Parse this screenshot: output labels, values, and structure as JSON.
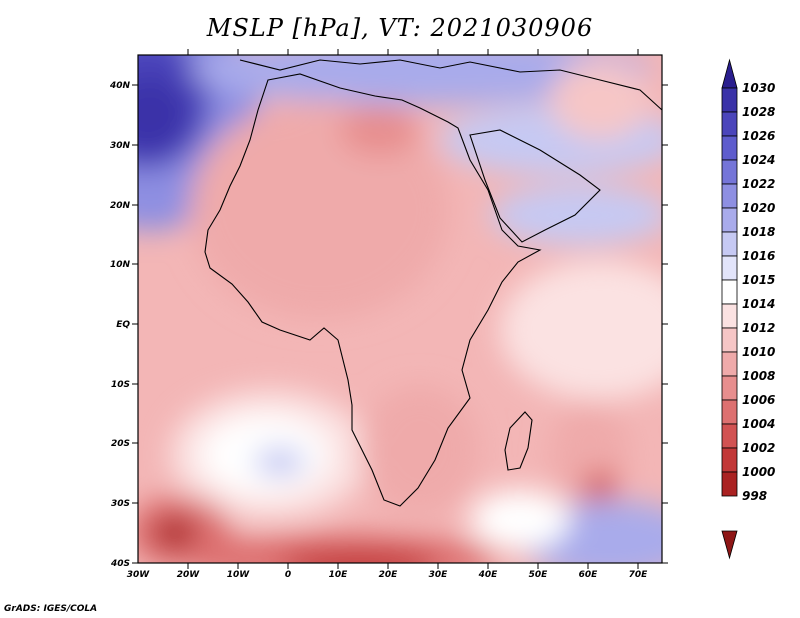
{
  "title": "MSLP [hPa], VT: 2021030906",
  "credit": "GrADS: IGES/COLA",
  "lat_labels": [
    "40N",
    "30N",
    "20N",
    "10N",
    "EQ",
    "10S",
    "20S",
    "30S",
    "40S"
  ],
  "lon_labels": [
    "30W",
    "20W",
    "10W",
    "0",
    "10E",
    "20E",
    "30E",
    "40E",
    "50E",
    "60E",
    "70E"
  ],
  "colorbar": {
    "levels": [
      "1030",
      "1028",
      "1026",
      "1024",
      "1022",
      "1020",
      "1018",
      "1016",
      "1015",
      "1014",
      "1012",
      "1010",
      "1008",
      "1006",
      "1004",
      "1002",
      "1000",
      "998"
    ],
    "colors": [
      "#2a1e8e",
      "#3a32a8",
      "#4b45bb",
      "#5e5ccd",
      "#7575d8",
      "#8e8fe2",
      "#a9abeb",
      "#c6c9f3",
      "#e2e4fa",
      "#ffffff",
      "#fbe2e2",
      "#f6c6c6",
      "#efaaaa",
      "#e78e8e",
      "#dd7070",
      "#d15252",
      "#c23838",
      "#aa2222",
      "#8e1616"
    ]
  }
}
